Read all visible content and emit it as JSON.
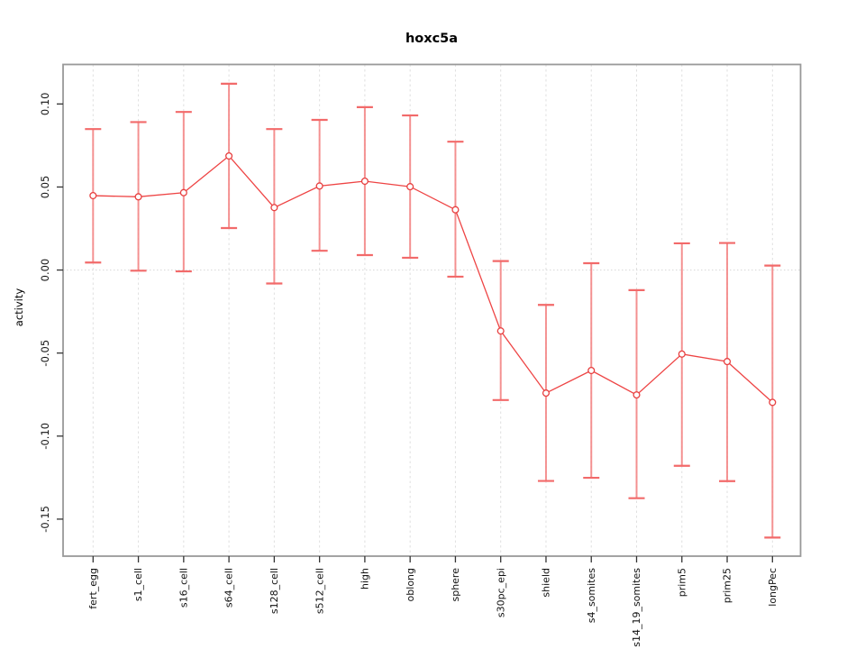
{
  "chart_data": {
    "type": "line",
    "title": "hoxc5a",
    "xlabel": "",
    "ylabel": "activity",
    "legend_position": "none",
    "grid": {
      "vertical_dashed_per_category": true,
      "horizontal_dotted_at_zero": true
    },
    "categories": [
      "fert_egg",
      "s1_cell",
      "s16_cell",
      "s64_cell",
      "s128_cell",
      "s512_cell",
      "high",
      "oblong",
      "sphere",
      "s30pc_epi",
      "shield",
      "s4_somites",
      "s14_19_somites",
      "prim5",
      "prim25",
      "longPec"
    ],
    "series": [
      {
        "name": "activity",
        "marker": "open-circle",
        "values": [
          0.0448,
          0.0441,
          0.0466,
          0.0687,
          0.0376,
          0.0506,
          0.0535,
          0.0502,
          0.0363,
          -0.0367,
          -0.0741,
          -0.0605,
          -0.0752,
          -0.0506,
          -0.0551,
          -0.0797
        ],
        "error_upper": [
          0.0849,
          0.0891,
          0.0952,
          0.1122,
          0.0849,
          0.0904,
          0.0981,
          0.0931,
          0.0773,
          0.0054,
          -0.021,
          0.0041,
          -0.0121,
          0.0161,
          0.0163,
          0.0027
        ],
        "error_lower": [
          0.0045,
          -0.0004,
          -0.0008,
          0.0253,
          -0.0081,
          0.0116,
          0.009,
          0.0074,
          -0.004,
          -0.0783,
          -0.127,
          -0.1251,
          -0.1374,
          -0.1179,
          -0.1271,
          -0.1611
        ]
      }
    ],
    "y_ticks": [
      {
        "value": 0.1,
        "label": "0.10"
      },
      {
        "value": 0.05,
        "label": "0.05"
      },
      {
        "value": 0.0,
        "label": "0.00"
      },
      {
        "value": -0.05,
        "label": "-0.05"
      },
      {
        "value": -0.1,
        "label": "-0.10"
      },
      {
        "value": -0.15,
        "label": "-0.15"
      }
    ],
    "ylim": [
      -0.1723,
      0.1238
    ],
    "colors": {
      "series_line": "#ee4444",
      "marker_stroke": "#e74040",
      "error_bar": "#f48080",
      "error_bar_cap": "#f26a6a",
      "plot_border": "#999999",
      "gridline": "#e0e0e0",
      "zero_line": "#d8d8d8",
      "tick": "#333333",
      "text": "#111111"
    }
  }
}
